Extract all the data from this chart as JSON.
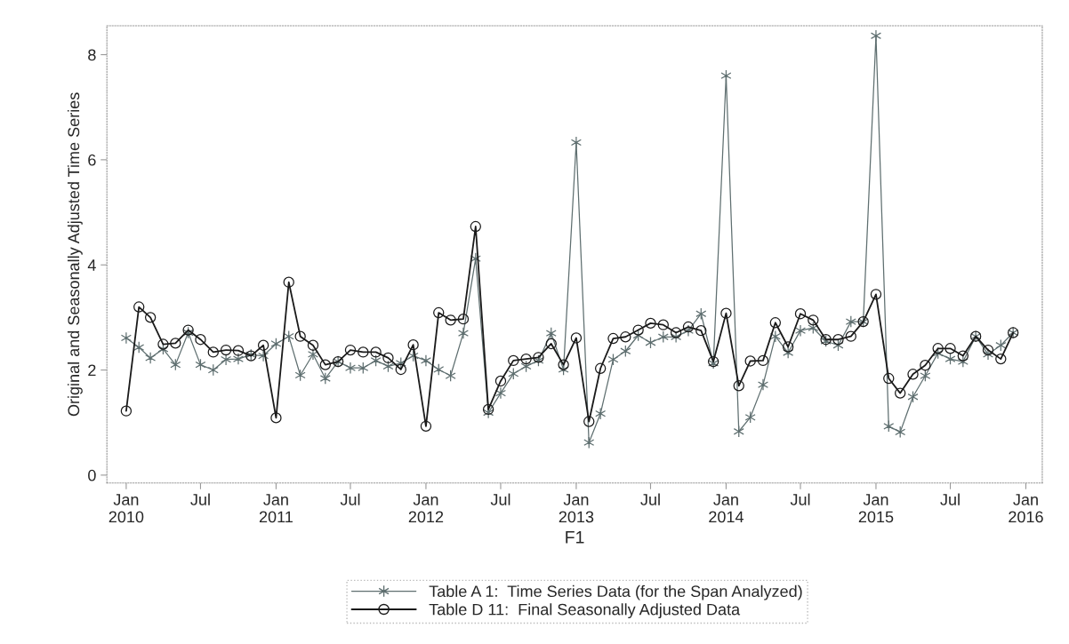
{
  "chart_data": {
    "type": "line",
    "xlabel": "F1",
    "ylabel": "Original and Seasonally Adjusted Time Series",
    "x": [
      "2010-01",
      "2010-02",
      "2010-03",
      "2010-04",
      "2010-05",
      "2010-06",
      "2010-07",
      "2010-08",
      "2010-09",
      "2010-10",
      "2010-11",
      "2010-12",
      "2011-01",
      "2011-02",
      "2011-03",
      "2011-04",
      "2011-05",
      "2011-06",
      "2011-07",
      "2011-08",
      "2011-09",
      "2011-10",
      "2011-11",
      "2011-12",
      "2012-01",
      "2012-02",
      "2012-03",
      "2012-04",
      "2012-05",
      "2012-06",
      "2012-07",
      "2012-08",
      "2012-09",
      "2012-10",
      "2012-11",
      "2012-12",
      "2013-01",
      "2013-02",
      "2013-03",
      "2013-04",
      "2013-05",
      "2013-06",
      "2013-07",
      "2013-08",
      "2013-09",
      "2013-10",
      "2013-11",
      "2013-12",
      "2014-01",
      "2014-02",
      "2014-03",
      "2014-04",
      "2014-05",
      "2014-06",
      "2014-07",
      "2014-08",
      "2014-09",
      "2014-10",
      "2014-11",
      "2014-12",
      "2015-01",
      "2015-02",
      "2015-03",
      "2015-04",
      "2015-05",
      "2015-06",
      "2015-07",
      "2015-08",
      "2015-09",
      "2015-10",
      "2015-11",
      "2015-12"
    ],
    "series": [
      {
        "name": "Table A 1:  Time Series Data (for the Span Analyzed)",
        "color": "#5f6f70",
        "marker": "cross",
        "values": [
          2.61,
          2.43,
          2.23,
          2.4,
          2.1,
          2.71,
          2.1,
          2.0,
          2.2,
          2.21,
          2.29,
          2.27,
          2.5,
          2.64,
          1.9,
          2.3,
          1.84,
          2.16,
          2.04,
          2.04,
          2.18,
          2.07,
          2.13,
          2.27,
          2.18,
          2.01,
          1.89,
          2.7,
          4.12,
          1.19,
          1.56,
          1.93,
          2.07,
          2.18,
          2.7,
          2.01,
          6.33,
          0.62,
          1.17,
          2.2,
          2.36,
          2.66,
          2.52,
          2.63,
          2.63,
          2.75,
          3.07,
          2.13,
          7.6,
          0.83,
          1.1,
          1.72,
          2.64,
          2.33,
          2.75,
          2.8,
          2.55,
          2.47,
          2.92,
          2.92,
          8.36,
          0.93,
          0.82,
          1.49,
          1.89,
          2.32,
          2.21,
          2.16,
          2.64,
          2.3,
          2.47,
          2.71
        ]
      },
      {
        "name": "Table D 11:  Final Seasonally Adjusted Data",
        "color": "#1a1a1a",
        "marker": "circle",
        "values": [
          1.22,
          3.2,
          3.0,
          2.49,
          2.51,
          2.76,
          2.58,
          2.34,
          2.38,
          2.37,
          2.27,
          2.47,
          1.09,
          3.67,
          2.64,
          2.47,
          2.1,
          2.16,
          2.38,
          2.34,
          2.34,
          2.23,
          2.01,
          2.48,
          0.93,
          3.09,
          2.95,
          2.97,
          4.73,
          1.25,
          1.79,
          2.18,
          2.21,
          2.24,
          2.5,
          2.1,
          2.61,
          1.02,
          2.03,
          2.6,
          2.63,
          2.76,
          2.89,
          2.86,
          2.71,
          2.82,
          2.75,
          2.16,
          3.08,
          1.7,
          2.17,
          2.18,
          2.9,
          2.44,
          3.07,
          2.95,
          2.58,
          2.58,
          2.64,
          2.92,
          3.44,
          1.84,
          1.56,
          1.92,
          2.09,
          2.41,
          2.41,
          2.27,
          2.64,
          2.38,
          2.21,
          2.71
        ]
      }
    ],
    "xlim": [
      "2009-11-15",
      "2016-02-10"
    ],
    "xticks": [
      {
        "value": "2010-01",
        "label": "Jan\n2010"
      },
      {
        "value": "2010-07",
        "label": "Jul"
      },
      {
        "value": "2011-01",
        "label": "Jan\n2011"
      },
      {
        "value": "2011-07",
        "label": "Jul"
      },
      {
        "value": "2012-01",
        "label": "Jan\n2012"
      },
      {
        "value": "2012-07",
        "label": "Jul"
      },
      {
        "value": "2013-01",
        "label": "Jan\n2013"
      },
      {
        "value": "2013-07",
        "label": "Jul"
      },
      {
        "value": "2014-01",
        "label": "Jan\n2014"
      },
      {
        "value": "2014-07",
        "label": "Jul"
      },
      {
        "value": "2015-01",
        "label": "Jan\n2015"
      },
      {
        "value": "2015-07",
        "label": "Jul"
      },
      {
        "value": "2016-01",
        "label": "Jan\n2016"
      }
    ],
    "ylim": [
      -0.15,
      8.55
    ],
    "yticks": [
      0,
      2,
      4,
      6,
      8
    ],
    "grid": false,
    "legend": "bottom",
    "line_style": "solid"
  }
}
